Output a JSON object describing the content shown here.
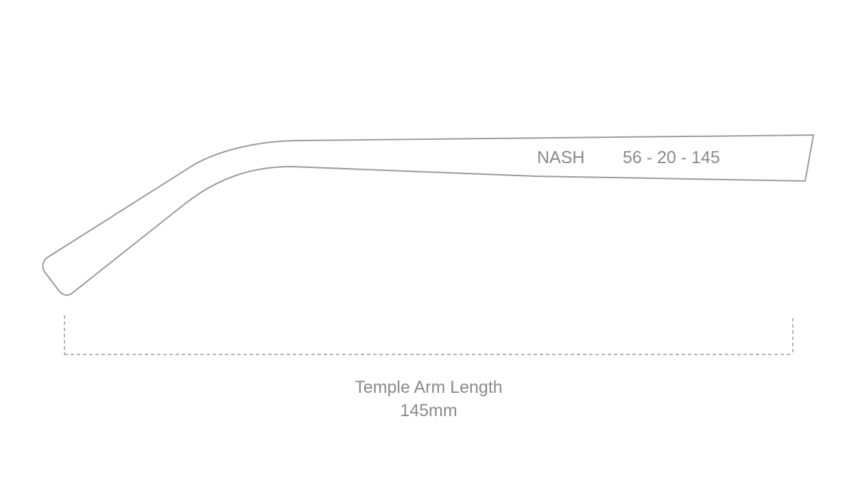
{
  "model": "NASH",
  "size": "56 - 20 - 145",
  "measure": {
    "label": "Temple Arm Length",
    "value": "145mm"
  }
}
